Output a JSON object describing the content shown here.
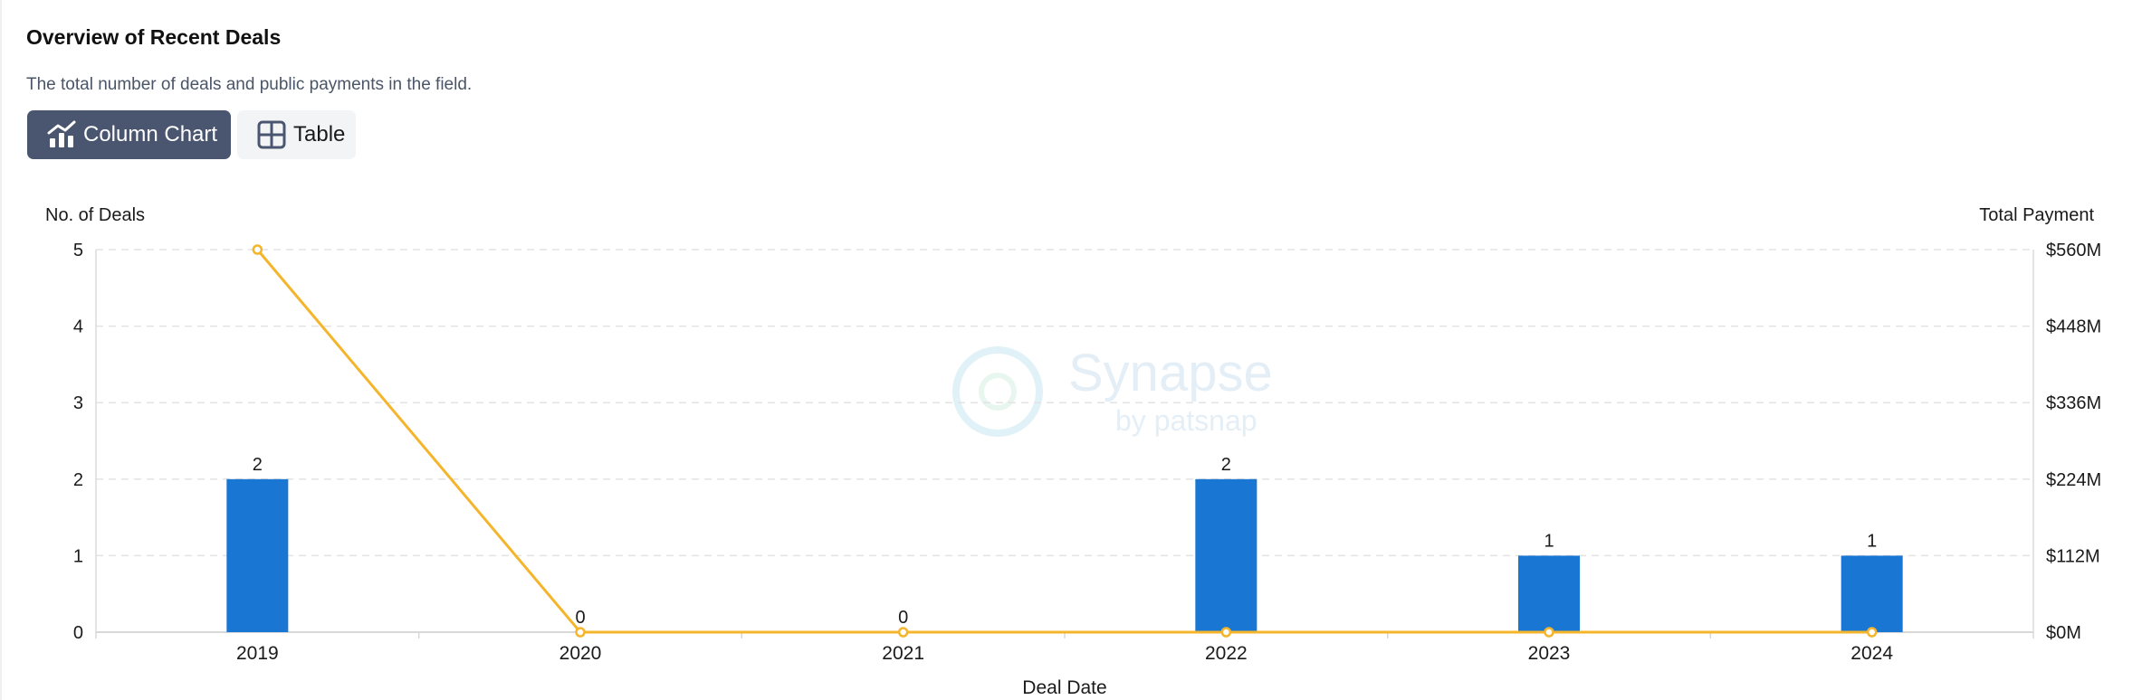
{
  "header": {
    "title": "Overview of Recent Deals",
    "subtitle": "The total number of deals and public payments in the field."
  },
  "view_toggle": {
    "column_chart_label": "Column Chart",
    "table_label": "Table",
    "active": "Column Chart"
  },
  "watermark": {
    "text": "Synapse",
    "subtext": "by patsnap"
  },
  "colors": {
    "bar": "#1976d2",
    "line": "#f5b52b",
    "button_active": "#4a5670"
  },
  "chart_data": {
    "type": "bar",
    "categories": [
      "2019",
      "2020",
      "2021",
      "2022",
      "2023",
      "2024"
    ],
    "xlabel": "Deal Date",
    "ylabel": "No. of Deals",
    "y2label": "Total Payment",
    "ylim": [
      0,
      5
    ],
    "y_ticks": [
      "0",
      "1",
      "2",
      "3",
      "4",
      "5"
    ],
    "y2lim": [
      0,
      560
    ],
    "y2_ticks": [
      "$0M",
      "$112M",
      "$224M",
      "$336M",
      "$448M",
      "$560M"
    ],
    "grid": true,
    "series": [
      {
        "type": "bar",
        "values": [
          2,
          0,
          0,
          2,
          1,
          1
        ],
        "data_labels": [
          "2",
          "0",
          "0",
          "2",
          "1",
          "1"
        ],
        "axis": "left"
      },
      {
        "type": "line",
        "values": [
          560,
          0,
          0,
          0,
          0,
          0
        ],
        "axis": "right"
      }
    ]
  }
}
